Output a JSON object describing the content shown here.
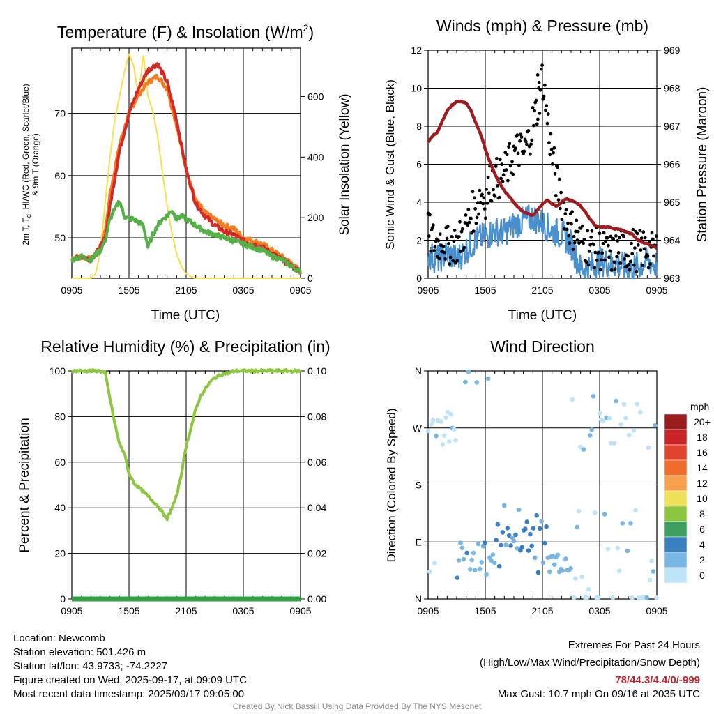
{
  "colors": {
    "temp": "#d42a26",
    "wind_chill": "#2e9e3a",
    "dewpoint": "#55b047",
    "temp9m": "#f47b20",
    "solar": "#f9e04b",
    "pressure": "#9c1c1f",
    "sonic_wind": "#4a90cf",
    "gust": "#000000",
    "rh": "#8dc63f",
    "precip": "#2ea043"
  },
  "chart_data": [
    {
      "type": "line",
      "title": "Temperature (F) & Insolation (W/m²)",
      "xlabel": "Time (UTC)",
      "ylabel": "2m T, Td, HI/WC (Red, Green, Scarlet/Blue) & 9m T (Orange)",
      "ylabel_right": "Solar Insolation (Yellow)",
      "x_ticks": [
        "0905",
        "1505",
        "2105",
        "0305",
        "0905"
      ],
      "y_ticks": [
        "50",
        "60",
        "70"
      ],
      "y_ticks_right": [
        "0",
        "200",
        "400",
        "600"
      ],
      "ylim": [
        43.5,
        80.5
      ],
      "ylim_right": [
        0,
        760
      ],
      "x_hours_range": [
        0,
        24
      ],
      "series": [
        {
          "key": "solar",
          "axis": "right",
          "x": [
            0,
            2,
            2.5,
            3,
            3.5,
            4,
            4.5,
            5,
            5.5,
            6,
            6.5,
            7,
            7.5,
            8,
            8.5,
            9,
            9.5,
            10,
            10.5,
            11,
            11.5,
            12,
            12.5,
            13,
            14,
            24
          ],
          "values": [
            0,
            0,
            15,
            90,
            250,
            400,
            520,
            600,
            680,
            740,
            700,
            600,
            740,
            600,
            550,
            470,
            350,
            240,
            150,
            80,
            40,
            15,
            5,
            0,
            0,
            0
          ]
        },
        {
          "key": "temp9m",
          "axis": "left",
          "x": [
            0,
            1,
            2,
            3,
            3.5,
            4,
            5,
            6,
            7,
            8,
            9,
            10,
            11,
            12,
            13,
            14,
            15,
            16,
            17,
            18,
            19,
            20,
            21,
            22,
            23,
            24
          ],
          "values": [
            46.8,
            47,
            46.5,
            48.5,
            51,
            57,
            65,
            70,
            73,
            75,
            76,
            74,
            68,
            61,
            56,
            54,
            53,
            52,
            51.5,
            50,
            49.5,
            49,
            48,
            47,
            46,
            44.5
          ]
        },
        {
          "key": "temp",
          "axis": "left",
          "x": [
            0,
            1,
            2,
            3,
            3.5,
            4,
            5,
            6,
            7,
            8,
            9,
            10,
            11,
            12,
            13,
            14,
            15,
            16,
            17,
            18,
            19,
            20,
            21,
            22,
            23,
            24
          ],
          "values": [
            46.5,
            47,
            46.5,
            48.5,
            50,
            55,
            64,
            70,
            74,
            77,
            78,
            75,
            69,
            61,
            55.5,
            53.5,
            52,
            51,
            50.5,
            49.5,
            49,
            48.5,
            47.5,
            46.5,
            45.5,
            44.5
          ]
        },
        {
          "key": "dewpoint",
          "axis": "left",
          "x": [
            0,
            1,
            2,
            3,
            3.5,
            4,
            4.5,
            5,
            5.5,
            6,
            6.5,
            7,
            7.5,
            8,
            8.5,
            9,
            9.5,
            10,
            10.5,
            11,
            11.5,
            12,
            12.5,
            13,
            14,
            15,
            16,
            17,
            18,
            19,
            20,
            21,
            22,
            23,
            24
          ],
          "values": [
            46.5,
            47,
            46.5,
            48,
            49.5,
            53,
            54.5,
            56,
            53.5,
            53,
            53,
            52.5,
            52,
            48.5,
            50.5,
            52,
            53,
            53.5,
            54.5,
            53,
            53.5,
            53,
            52.5,
            52,
            51,
            50.5,
            50,
            49.5,
            49,
            48.5,
            48,
            47,
            46.5,
            45.5,
            44.5
          ]
        }
      ]
    },
    {
      "type": "line",
      "title": "Winds (mph) & Pressure (mb)",
      "xlabel": "Time (UTC)",
      "ylabel": "Sonic Wind & Gust (Blue, Black)",
      "ylabel_right": "Station Pressure (Maroon)",
      "x_ticks": [
        "0905",
        "1505",
        "2105",
        "0305",
        "0905"
      ],
      "y_ticks": [
        "0",
        "2",
        "4",
        "6",
        "8",
        "10",
        "12"
      ],
      "y_ticks_right": [
        "963",
        "964",
        "965",
        "966",
        "967",
        "968",
        "969"
      ],
      "ylim": [
        0,
        12
      ],
      "ylim_right": [
        963,
        969
      ],
      "x_hours_range": [
        0,
        24
      ],
      "series": [
        {
          "key": "pressure",
          "axis": "right",
          "x": [
            0,
            0.5,
            1,
            1.5,
            2,
            2.5,
            3,
            3.5,
            4,
            4.5,
            5,
            5.5,
            6,
            6.5,
            7,
            7.5,
            8,
            8.5,
            9,
            9.5,
            10,
            10.5,
            11,
            11.5,
            12,
            12.5,
            13,
            13.5,
            14,
            14.5,
            15,
            15.5,
            16,
            16.5,
            17,
            17.5,
            18,
            18.5,
            19,
            19.5,
            20,
            20.5,
            21,
            21.5,
            22,
            22.5,
            23,
            23.5,
            24
          ],
          "values": [
            966.6,
            966.75,
            966.85,
            967.15,
            967.4,
            967.55,
            967.65,
            967.65,
            967.6,
            967.4,
            967.1,
            966.8,
            966.4,
            966.05,
            965.75,
            965.5,
            965.3,
            965.15,
            965.0,
            964.85,
            964.75,
            964.7,
            964.65,
            964.8,
            964.95,
            965.05,
            964.95,
            964.9,
            965.0,
            965.1,
            965.05,
            965.0,
            964.9,
            964.75,
            964.55,
            964.4,
            964.35,
            964.35,
            964.35,
            964.3,
            964.3,
            964.25,
            964.2,
            964.15,
            964.0,
            963.95,
            963.9,
            963.85,
            963.8
          ]
        },
        {
          "key": "sonic_wind",
          "axis": "left",
          "x": [
            0,
            1,
            2,
            3,
            4,
            5,
            6,
            7,
            8,
            9,
            10,
            11,
            12,
            13,
            14,
            15,
            16,
            17,
            18,
            19,
            20,
            21,
            22,
            23,
            24
          ],
          "values": [
            1.2,
            1.0,
            1.3,
            1.0,
            1.5,
            2.0,
            2.2,
            2.5,
            2.4,
            2.8,
            3.0,
            3.2,
            2.9,
            2.5,
            2.3,
            1.8,
            0.5,
            0.6,
            0.9,
            0.8,
            0.7,
            0.5,
            0.6,
            0.9,
            0.7
          ]
        },
        {
          "key": "gust",
          "axis": "left",
          "x": [
            0,
            0.5,
            1,
            1.5,
            2,
            2.5,
            3,
            3.5,
            4,
            4.5,
            5,
            5.5,
            6,
            6.5,
            7,
            7.5,
            8,
            8.5,
            9,
            9.5,
            10,
            10.5,
            11,
            11.5,
            12,
            12.5,
            13,
            13.5,
            14,
            14.5,
            15,
            15.5,
            16,
            16.5,
            17,
            17.5,
            18,
            18.5,
            19,
            19.5,
            20,
            20.5,
            21,
            21.5,
            22,
            22.5,
            23,
            23.5,
            24
          ],
          "values": [
            2.4,
            2.0,
            1.8,
            2.2,
            1.6,
            2.0,
            1.7,
            2.2,
            2.6,
            3.4,
            3.6,
            4.5,
            4.2,
            5.0,
            5.3,
            5.2,
            5.5,
            6.0,
            6.5,
            6.8,
            6.5,
            7.2,
            8.2,
            9.0,
            10.7,
            8.4,
            6.5,
            5.0,
            4.2,
            3.2,
            2.6,
            2.5,
            2.0,
            1.8,
            1.7,
            1.6,
            1.5,
            1.4,
            1.2,
            1.3,
            1.5,
            1.6,
            1.3,
            1.6,
            1.4,
            1.5,
            1.6,
            1.3,
            1.5
          ]
        }
      ]
    },
    {
      "type": "line",
      "title": "Relative Humidity (%) & Precipitation (in)",
      "xlabel": "",
      "ylabel": "Percent & Precipitation",
      "x_ticks": [
        "0905",
        "1505",
        "2105",
        "0305",
        "0905"
      ],
      "y_ticks": [
        "0",
        "20",
        "40",
        "60",
        "80",
        "100"
      ],
      "y_ticks_right": [
        "0.00",
        "0.02",
        "0.04",
        "0.06",
        "0.08",
        "0.10"
      ],
      "ylim": [
        0,
        100
      ],
      "ylim_right": [
        0,
        0.1
      ],
      "x_hours_range": [
        0,
        24
      ],
      "series": [
        {
          "key": "rh",
          "axis": "left",
          "x": [
            0,
            1,
            2,
            3,
            3.5,
            4,
            4.5,
            5,
            5.5,
            6,
            6.5,
            7,
            7.5,
            8,
            8.5,
            9,
            9.5,
            10,
            10.5,
            11,
            11.5,
            12,
            12.5,
            13,
            13.5,
            14,
            14.5,
            15,
            15.5,
            16,
            16.5,
            17,
            18,
            19,
            24
          ],
          "values": [
            100,
            100,
            100,
            100,
            99,
            88,
            77,
            68,
            64,
            55,
            51,
            49,
            47,
            45,
            43,
            41,
            38,
            35,
            40,
            45,
            55,
            67,
            75,
            83,
            89,
            92,
            95,
            97,
            98,
            99,
            99,
            100,
            100,
            100,
            100
          ]
        },
        {
          "key": "precip",
          "axis": "right",
          "x": [
            0,
            24
          ],
          "values": [
            0,
            0
          ]
        }
      ]
    },
    {
      "type": "scatter",
      "title": "Wind Direction",
      "xlabel": "",
      "ylabel": "Direction (Colored By Speed)",
      "x_ticks": [
        "0905",
        "1505",
        "2105",
        "0305",
        "0905"
      ],
      "y_ticks": [
        "N",
        "E",
        "S",
        "W",
        "N"
      ],
      "ylim": [
        0,
        360
      ],
      "x_hours_range": [
        0,
        24
      ],
      "colorbar": {
        "title": "mph",
        "labels": [
          "20+",
          "18",
          "16",
          "14",
          "12",
          "10",
          "8",
          "6",
          "4",
          "2",
          "0"
        ],
        "colors": [
          "#9b1c1f",
          "#c72328",
          "#e0442c",
          "#f26c2b",
          "#f9a04e",
          "#f0e15a",
          "#8cc63f",
          "#3d9e5f",
          "#3a7fbf",
          "#78b6e4",
          "#bfe3f7"
        ]
      }
    }
  ],
  "footer": {
    "location": "Location: Newcomb",
    "elevation": "Station elevation: 501.426 m",
    "latlon": "Station lat/lon: 43.9733; -74.2227",
    "created": "Figure created on Wed, 2025-09-17, at 09:09 UTC",
    "recent": "Most recent data timestamp: 2025/09/17 09:05:00",
    "extremes_title": "Extremes For Past 24 Hours",
    "extremes_fields": "(High/Low/Max Wind/Precipitation/Snow Depth)",
    "extremes_values": "78/44.3/4.4/0/-999",
    "max_gust": "Max Gust: 10.7 mph On 09/16 at 2035 UTC",
    "credit": "Created By Nick Bassill Using Data Provided By The NYS Mesonet"
  }
}
